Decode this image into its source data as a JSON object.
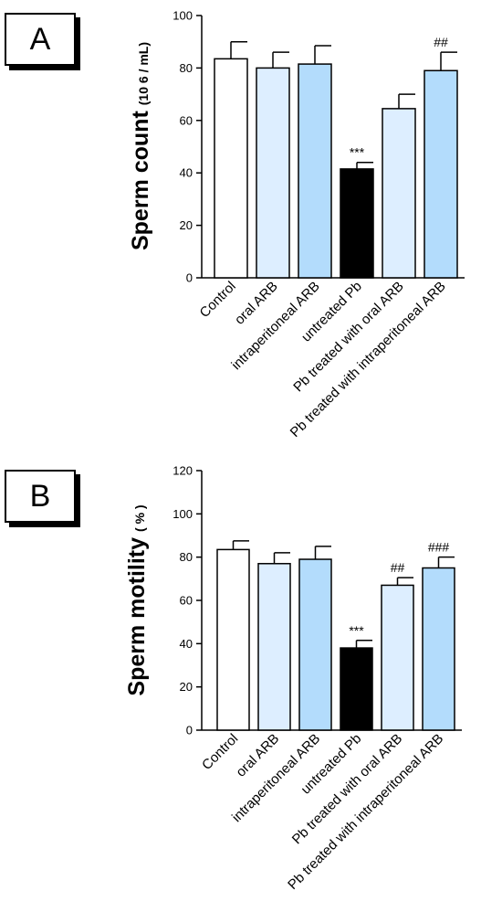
{
  "panels": {
    "a_label": "A",
    "b_label": "B"
  },
  "colors": {
    "control": "#ffffff",
    "light_blue": "#ddeeff",
    "mid_blue": "#b3dcfc",
    "black": "#000000"
  },
  "chart_data": [
    {
      "type": "bar",
      "ylabel": "Sperm count",
      "yunit": "(10 6 / mL)",
      "ylim": [
        0,
        100
      ],
      "yticks": [
        0,
        20,
        40,
        60,
        80,
        100
      ],
      "categories": [
        "Control",
        "oral ARB",
        "intraperitoneal ARB",
        "untreated Pb",
        "Pb treated with oral ARB",
        "Pb treated with intraperitoneal ARB"
      ],
      "values": [
        83.5,
        80,
        81.5,
        41.5,
        64.5,
        79
      ],
      "errors": [
        6.5,
        6,
        7,
        2.5,
        5.5,
        7
      ],
      "annotations": [
        "",
        "",
        "",
        "***",
        "",
        "##"
      ],
      "fill_colors": [
        "#ffffff",
        "#ddeeff",
        "#b3dcfc",
        "#000000",
        "#ddeeff",
        "#b3dcfc"
      ]
    },
    {
      "type": "bar",
      "ylabel": "Sperm motility",
      "yunit": "( % )",
      "ylim": [
        0,
        120
      ],
      "yticks": [
        0,
        20,
        40,
        60,
        80,
        100,
        120
      ],
      "categories": [
        "Control",
        "oral ARB",
        "intraperitoneal ARB",
        "untreated Pb",
        "Pb treated with oral ARB",
        "Pb treated with intraperitoneal ARB"
      ],
      "values": [
        83.5,
        77,
        79,
        38,
        67,
        75
      ],
      "errors": [
        4,
        5,
        6,
        3.5,
        3.5,
        5
      ],
      "annotations": [
        "",
        "",
        "",
        "***",
        "##",
        "###"
      ],
      "fill_colors": [
        "#ffffff",
        "#ddeeff",
        "#b3dcfc",
        "#000000",
        "#ddeeff",
        "#b3dcfc"
      ]
    }
  ]
}
